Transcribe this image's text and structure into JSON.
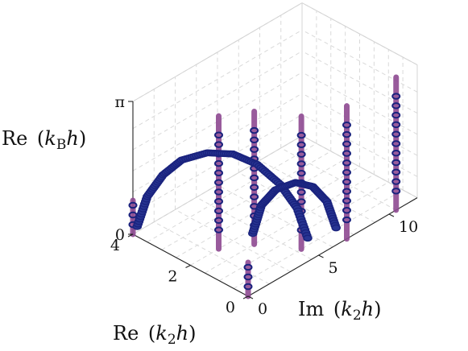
{
  "chart_data": {
    "type": "scatter",
    "title": "",
    "xlabel": "Re (k2h)",
    "ylabel": "Im (k2h)",
    "zlabel": "Re (kBh)",
    "labels": {
      "x_prefix": "Re",
      "x_var": "k",
      "x_sub": "2",
      "x_suffix": "h",
      "y_prefix": "Im",
      "y_var": "k",
      "y_sub": "2",
      "y_suffix": "h",
      "z_prefix": "Re",
      "z_var": "k",
      "z_sub": "B",
      "z_suffix": "h"
    },
    "xlim": [
      0,
      4
    ],
    "ylim": [
      0,
      12
    ],
    "zlim": [
      0,
      3.1416
    ],
    "xticks": [
      {
        "value": 0,
        "label": "0"
      },
      {
        "value": 2,
        "label": "2"
      },
      {
        "value": 4,
        "label": "4"
      }
    ],
    "yticks": [
      {
        "value": 0,
        "label": "0"
      },
      {
        "value": 5,
        "label": "5"
      },
      {
        "value": 10,
        "label": "10"
      }
    ],
    "zticks": [
      {
        "value": 0,
        "label": "0"
      },
      {
        "value": 3.1416,
        "label": "π"
      }
    ],
    "grid": true,
    "colors": {
      "marker_edge": "#1a237e",
      "marker_fill": "#283593",
      "bar": "#8e4a92",
      "grid": "#d9d9d9"
    },
    "series": [
      {
        "kind": "vertical-bar",
        "x": 4.0,
        "y": 0.0,
        "z": [
          0,
          0.8
        ]
      },
      {
        "kind": "vertical-bar",
        "x": 0.0,
        "y": 0.0,
        "z": [
          0,
          0.8
        ]
      },
      {
        "kind": "vertical-bar",
        "x": 2.0,
        "y": 2.0,
        "z": [
          0,
          3.14
        ]
      },
      {
        "kind": "vertical-bar",
        "x": 1.5,
        "y": 3.5,
        "z": [
          0,
          3.14
        ]
      },
      {
        "kind": "vertical-bar",
        "x": 0.5,
        "y": 4.8,
        "z": [
          0,
          3.14
        ]
      },
      {
        "kind": "vertical-bar",
        "x": 0.0,
        "y": 7.0,
        "z": [
          0,
          3.14
        ]
      },
      {
        "kind": "vertical-bar",
        "x": 0.0,
        "y": 10.5,
        "z": [
          0,
          3.14
        ]
      },
      {
        "kind": "arch",
        "points": [
          {
            "x": 3.9,
            "y": 0.1,
            "z": 0.2
          },
          {
            "x": 3.6,
            "y": 0.2,
            "z": 1.0
          },
          {
            "x": 3.2,
            "y": 0.5,
            "z": 1.6
          },
          {
            "x": 2.8,
            "y": 1.0,
            "z": 2.0
          },
          {
            "x": 2.3,
            "y": 1.8,
            "z": 2.2
          },
          {
            "x": 1.8,
            "y": 2.6,
            "z": 2.2
          },
          {
            "x": 1.3,
            "y": 3.3,
            "z": 2.0
          },
          {
            "x": 0.8,
            "y": 3.9,
            "z": 1.6
          },
          {
            "x": 0.4,
            "y": 4.3,
            "z": 1.1
          },
          {
            "x": 0.1,
            "y": 4.5,
            "z": 0.4
          }
        ]
      },
      {
        "kind": "arch",
        "points": [
          {
            "x": 1.6,
            "y": 3.6,
            "z": 0.2
          },
          {
            "x": 1.4,
            "y": 3.8,
            "z": 0.9
          },
          {
            "x": 1.1,
            "y": 4.2,
            "z": 1.3
          },
          {
            "x": 0.7,
            "y": 4.8,
            "z": 1.5
          },
          {
            "x": 0.4,
            "y": 5.4,
            "z": 1.4
          },
          {
            "x": 0.2,
            "y": 6.0,
            "z": 1.0
          },
          {
            "x": 0.05,
            "y": 6.4,
            "z": 0.3
          }
        ]
      }
    ]
  }
}
